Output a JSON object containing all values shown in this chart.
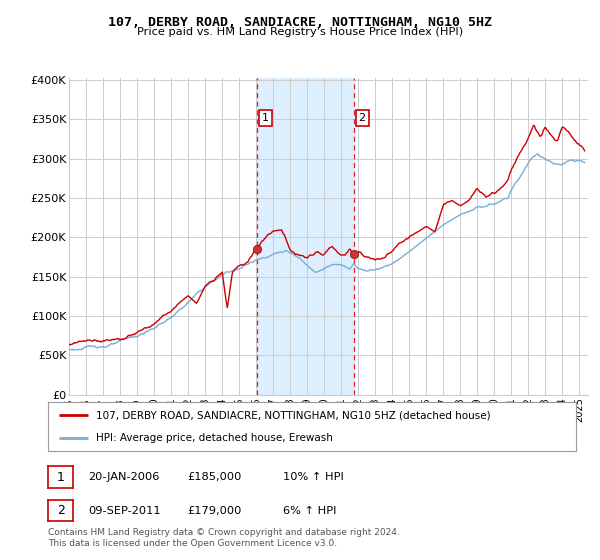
{
  "title": "107, DERBY ROAD, SANDIACRE, NOTTINGHAM, NG10 5HZ",
  "subtitle": "Price paid vs. HM Land Registry's House Price Index (HPI)",
  "legend_line1": "107, DERBY ROAD, SANDIACRE, NOTTINGHAM, NG10 5HZ (detached house)",
  "legend_line2": "HPI: Average price, detached house, Erewash",
  "footer": "Contains HM Land Registry data © Crown copyright and database right 2024.\nThis data is licensed under the Open Government Licence v3.0.",
  "transaction1_date": "20-JAN-2006",
  "transaction1_price": "£185,000",
  "transaction1_hpi": "10% ↑ HPI",
  "transaction2_date": "09-SEP-2011",
  "transaction2_price": "£179,000",
  "transaction2_hpi": "6% ↑ HPI",
  "xmin": 1995.0,
  "xmax": 2025.5,
  "ymin": 0,
  "ymax": 400000,
  "yticks": [
    0,
    50000,
    100000,
    150000,
    200000,
    250000,
    300000,
    350000,
    400000
  ],
  "ytick_labels": [
    "£0",
    "£50K",
    "£100K",
    "£150K",
    "£200K",
    "£250K",
    "£300K",
    "£350K",
    "£400K"
  ],
  "red_color": "#cc0000",
  "blue_color": "#7aadd4",
  "shade_color": "#ddeeff",
  "vline_color": "#dd2222",
  "grid_color": "#cccccc",
  "bg_color": "#ffffff",
  "transaction1_x": 2006.05,
  "transaction2_x": 2011.72,
  "shade_x1": 2006.05,
  "shade_x2": 2011.72
}
